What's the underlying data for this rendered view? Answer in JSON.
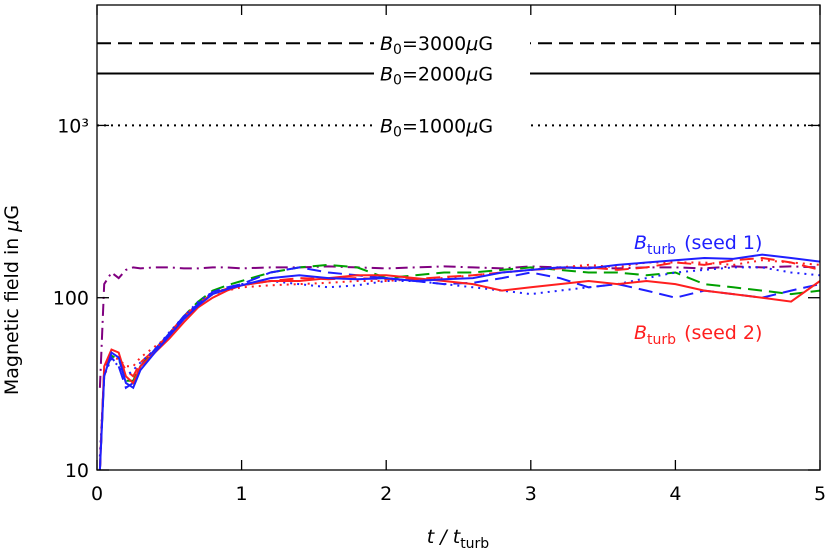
{
  "chart_data": {
    "type": "line",
    "xlabel": "t / t",
    "xlabel_sub": "turb",
    "ylabel": "Magnetic field in ",
    "ylabel_unit_mu": "μ",
    "ylabel_unit": "G",
    "log_y": true,
    "xlim": [
      0,
      5
    ],
    "xticks": [
      0,
      1,
      2,
      3,
      4,
      5
    ],
    "ylim": [
      10,
      5000
    ],
    "yticks": [
      10,
      100,
      {
        "value": 1000,
        "label": "10³"
      }
    ],
    "reference_lines": [
      {
        "value": 3000,
        "symbol": "B",
        "sub": "0",
        "label": "=3000",
        "unit_mu": "μ",
        "unit": "G",
        "style": "dashed"
      },
      {
        "value": 2000,
        "symbol": "B",
        "sub": "0",
        "label": "=2000",
        "unit_mu": "μ",
        "unit": "G",
        "style": "solid"
      },
      {
        "value": 1000,
        "symbol": "B",
        "sub": "0",
        "label": "=1000",
        "unit_mu": "μ",
        "unit": "G",
        "style": "dotted"
      }
    ],
    "annotations": [
      {
        "symbol": "B",
        "sub": "turb",
        "text": "(seed 1)",
        "color": "#1f1fff"
      },
      {
        "symbol": "B",
        "sub": "turb",
        "text": "(seed 2)",
        "color": "#ff1f1f"
      }
    ],
    "x": [
      0.02,
      0.05,
      0.1,
      0.15,
      0.2,
      0.25,
      0.3,
      0.4,
      0.5,
      0.6,
      0.7,
      0.8,
      0.9,
      1.0,
      1.2,
      1.4,
      1.6,
      1.8,
      2.0,
      2.2,
      2.4,
      2.6,
      2.8,
      3.0,
      3.2,
      3.4,
      3.6,
      3.8,
      4.0,
      4.2,
      4.4,
      4.6,
      4.8,
      5.0
    ],
    "series": [
      {
        "color": "#800080",
        "style": "dashdot",
        "values": [
          30,
          120,
          140,
          130,
          145,
          150,
          148,
          150,
          150,
          148,
          148,
          150,
          150,
          148,
          150,
          150,
          152,
          150,
          148,
          150,
          152,
          150,
          148,
          152,
          150,
          150,
          148,
          150,
          150,
          148,
          152,
          150,
          152,
          150
        ]
      },
      {
        "color": "#00a000",
        "style": "dashed",
        "values": [
          10,
          36,
          46,
          44,
          33,
          33,
          40,
          50,
          62,
          78,
          95,
          110,
          118,
          125,
          140,
          150,
          155,
          150,
          130,
          135,
          140,
          140,
          145,
          150,
          145,
          140,
          140,
          135,
          140,
          120,
          115,
          110,
          105,
          110
        ]
      },
      {
        "color": "#ff1f1f",
        "style": "dotted",
        "values": [
          12,
          35,
          45,
          44,
          40,
          40,
          45,
          52,
          60,
          75,
          90,
          105,
          110,
          115,
          118,
          120,
          122,
          125,
          125,
          128,
          130,
          135,
          140,
          145,
          150,
          155,
          150,
          160,
          160,
          160,
          155,
          165,
          160,
          155
        ]
      },
      {
        "color": "#ff1f1f",
        "style": "dashed",
        "values": [
          10,
          38,
          48,
          45,
          38,
          35,
          42,
          50,
          62,
          78,
          92,
          106,
          113,
          118,
          125,
          130,
          128,
          130,
          128,
          128,
          132,
          135,
          140,
          145,
          148,
          150,
          145,
          150,
          160,
          155,
          165,
          170,
          160,
          145
        ]
      },
      {
        "color": "#1f1fff",
        "style": "dotted",
        "values": [
          12,
          36,
          44,
          40,
          35,
          38,
          42,
          50,
          63,
          78,
          95,
          108,
          112,
          120,
          125,
          120,
          115,
          118,
          125,
          125,
          120,
          115,
          110,
          105,
          110,
          115,
          120,
          130,
          140,
          145,
          150,
          150,
          140,
          135
        ]
      },
      {
        "color": "#1f1fff",
        "style": "dashed",
        "values": [
          10,
          38,
          45,
          40,
          30,
          32,
          40,
          50,
          62,
          78,
          92,
          108,
          115,
          120,
          140,
          150,
          140,
          135,
          130,
          125,
          120,
          122,
          130,
          140,
          130,
          115,
          120,
          110,
          100,
          110,
          105,
          100,
          110,
          120
        ]
      },
      {
        "color": "#ff1f1f",
        "style": "solid",
        "values": [
          10,
          40,
          50,
          48,
          35,
          32,
          40,
          48,
          58,
          72,
          88,
          100,
          110,
          118,
          125,
          125,
          130,
          135,
          135,
          130,
          125,
          120,
          110,
          115,
          120,
          125,
          120,
          125,
          120,
          110,
          105,
          100,
          95,
          125
        ]
      },
      {
        "color": "#1f1fff",
        "style": "solid",
        "values": [
          10,
          35,
          48,
          45,
          32,
          30,
          38,
          48,
          60,
          75,
          90,
          105,
          112,
          118,
          130,
          135,
          130,
          128,
          130,
          125,
          128,
          130,
          140,
          145,
          150,
          148,
          155,
          160,
          165,
          170,
          168,
          178,
          170,
          162
        ]
      }
    ]
  }
}
